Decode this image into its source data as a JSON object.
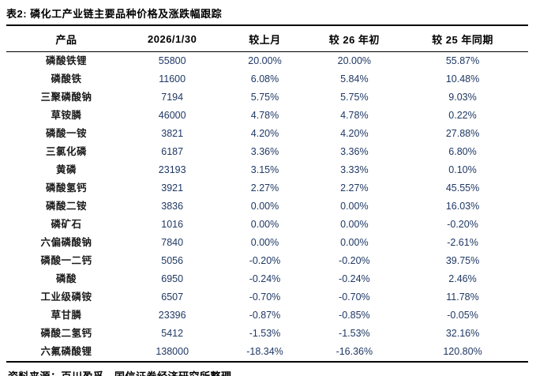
{
  "title": "表2: 磷化工产业链主要品种价格及涨跌幅跟踪",
  "source": "资料来源：百川盈孚，国信证券经济研究所整理",
  "colors": {
    "value_text": "#1F3864",
    "label_text": "#000000",
    "rule": "#000000",
    "background": "#FFFFFF"
  },
  "table": {
    "columns": [
      "产品",
      "2026/1/30",
      "较上月",
      "较 26 年初",
      "较 25 年同期"
    ],
    "rows": [
      {
        "name": "磷酸铁锂",
        "price": "55800",
        "mom": "20.00%",
        "ytd": "20.00%",
        "yoy": "55.87%"
      },
      {
        "name": "磷酸铁",
        "price": "11600",
        "mom": "6.08%",
        "ytd": "5.84%",
        "yoy": "10.48%"
      },
      {
        "name": "三聚磷酸钠",
        "price": "7194",
        "mom": "5.75%",
        "ytd": "5.75%",
        "yoy": "9.03%"
      },
      {
        "name": "草铵膦",
        "price": "46000",
        "mom": "4.78%",
        "ytd": "4.78%",
        "yoy": "0.22%"
      },
      {
        "name": "磷酸一铵",
        "price": "3821",
        "mom": "4.20%",
        "ytd": "4.20%",
        "yoy": "27.88%"
      },
      {
        "name": "三氯化磷",
        "price": "6187",
        "mom": "3.36%",
        "ytd": "3.36%",
        "yoy": "6.80%"
      },
      {
        "name": "黄磷",
        "price": "23193",
        "mom": "3.15%",
        "ytd": "3.33%",
        "yoy": "0.10%"
      },
      {
        "name": "磷酸氢钙",
        "price": "3921",
        "mom": "2.27%",
        "ytd": "2.27%",
        "yoy": "45.55%"
      },
      {
        "name": "磷酸二铵",
        "price": "3836",
        "mom": "0.00%",
        "ytd": "0.00%",
        "yoy": "16.03%"
      },
      {
        "name": "磷矿石",
        "price": "1016",
        "mom": "0.00%",
        "ytd": "0.00%",
        "yoy": "-0.20%"
      },
      {
        "name": "六偏磷酸钠",
        "price": "7840",
        "mom": "0.00%",
        "ytd": "0.00%",
        "yoy": "-2.61%"
      },
      {
        "name": "磷酸一二钙",
        "price": "5056",
        "mom": "-0.20%",
        "ytd": "-0.20%",
        "yoy": "39.75%"
      },
      {
        "name": "磷酸",
        "price": "6950",
        "mom": "-0.24%",
        "ytd": "-0.24%",
        "yoy": "2.46%"
      },
      {
        "name": "工业级磷铵",
        "price": "6507",
        "mom": "-0.70%",
        "ytd": "-0.70%",
        "yoy": "11.78%"
      },
      {
        "name": "草甘膦",
        "price": "23396",
        "mom": "-0.87%",
        "ytd": "-0.85%",
        "yoy": "-0.05%"
      },
      {
        "name": "磷酸二氢钙",
        "price": "5412",
        "mom": "-1.53%",
        "ytd": "-1.53%",
        "yoy": "32.16%"
      },
      {
        "name": "六氟磷酸锂",
        "price": "138000",
        "mom": "-18.34%",
        "ytd": "-16.36%",
        "yoy": "120.80%"
      }
    ]
  }
}
